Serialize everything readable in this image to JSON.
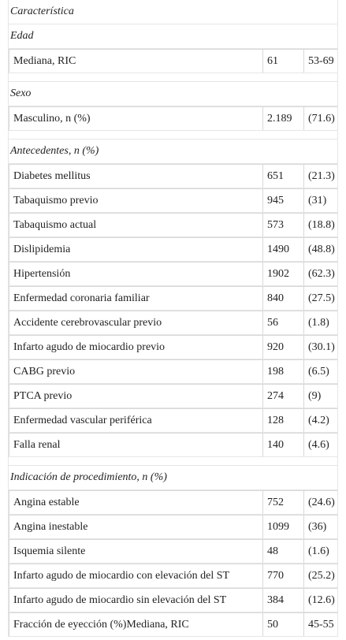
{
  "header": "Característica",
  "sections": [
    {
      "title": "Edad",
      "rows": [
        [
          "Mediana, RIC",
          "61",
          "53-69"
        ]
      ]
    },
    {
      "title": "Sexo",
      "rows": [
        [
          "Masculino, n (%)",
          "2.189",
          "(71.6)"
        ]
      ]
    },
    {
      "title": "Antecedentes, n (%)",
      "rows": [
        [
          "Diabetes mellitus",
          "651",
          "(21.3)"
        ],
        [
          "Tabaquismo previo",
          "945",
          "(31)"
        ],
        [
          "Tabaquismo actual",
          "573",
          "(18.8)"
        ],
        [
          "Dislipidemia",
          "1490",
          "(48.8)"
        ],
        [
          "Hipertensión",
          "1902",
          "(62.3)"
        ],
        [
          "Enfermedad coronaria familiar",
          "840",
          "(27.5)"
        ],
        [
          "Accidente cerebrovascular previo",
          "56",
          "(1.8)"
        ],
        [
          "Infarto agudo de miocardio previo",
          "920",
          "(30.1)"
        ],
        [
          "CABG previo",
          "198",
          "(6.5)"
        ],
        [
          "PTCA previo",
          "274",
          "(9)"
        ],
        [
          "Enfermedad vascular periférica",
          "128",
          "(4.2)"
        ],
        [
          "Falla renal",
          "140",
          "(4.6)"
        ]
      ]
    },
    {
      "title": "Indicación de procedimiento, n (%)",
      "rows": [
        [
          "Angina estable",
          "752",
          "(24.6)"
        ],
        [
          "Angina inestable",
          "1099",
          "(36)"
        ],
        [
          "Isquemia silente",
          "48",
          "(1.6)"
        ],
        [
          "Infarto agudo de miocardio con elevación del ST",
          "770",
          "(25.2)"
        ],
        [
          "Infarto agudo de miocardio sin elevación del ST",
          "384",
          "(12.6)"
        ],
        [
          "Fracción de eyección (%)Mediana, RIC",
          "50",
          "45-55"
        ]
      ]
    }
  ]
}
